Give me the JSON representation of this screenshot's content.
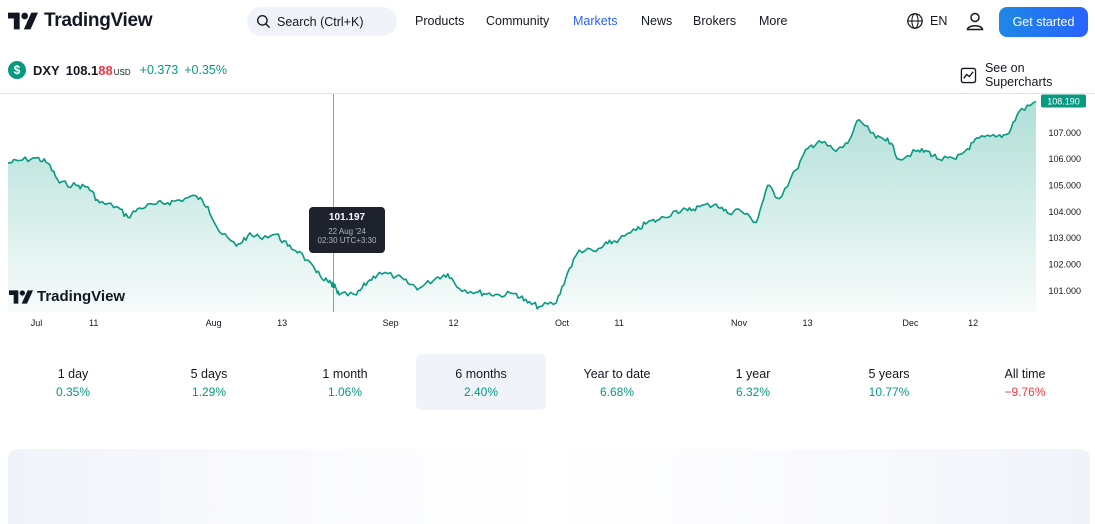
{
  "header": {
    "logo_text": "TradingView",
    "search_placeholder": "Search (Ctrl+K)",
    "nav": [
      "Products",
      "Community",
      "Markets",
      "News",
      "Brokers",
      "More"
    ],
    "active_nav": "Markets",
    "language": "EN",
    "cta": "Get started"
  },
  "ticker": {
    "symbol": "DXY",
    "price_main": "108.1",
    "price_tail": "88",
    "currency": "USD",
    "change": "+0.373",
    "change_percent": "+0.35%",
    "supercharts_label": "See on Supercharts"
  },
  "tooltip": {
    "value": "101.197",
    "date": "22 Aug '24",
    "time": "02:30 UTC+3:30"
  },
  "watermark": "TradingView",
  "colors": {
    "line": "#089981",
    "up": "#089981",
    "down": "#f23645",
    "accent": "#2962ff"
  },
  "chart_data": {
    "type": "area",
    "y_axis_ticks": [
      "107.000",
      "106.000",
      "105.000",
      "104.000",
      "103.000",
      "102.000",
      "101.000"
    ],
    "x_axis_ticks": [
      "Jul",
      "11",
      "Aug",
      "13",
      "Sep",
      "12",
      "Oct",
      "11",
      "Nov",
      "13",
      "Dec",
      "12"
    ],
    "last_value_label": "108.190",
    "ylim": [
      100.2,
      108.4
    ],
    "series": [
      {
        "x": [
          "2024-06-26",
          "2024-06-28",
          "2024-07-01",
          "2024-07-03",
          "2024-07-05",
          "2024-07-08",
          "2024-07-10",
          "2024-07-12",
          "2024-07-15",
          "2024-07-17",
          "2024-07-19",
          "2024-07-22",
          "2024-07-24",
          "2024-07-26",
          "2024-07-29",
          "2024-07-31",
          "2024-08-02",
          "2024-08-05",
          "2024-08-07",
          "2024-08-09",
          "2024-08-12",
          "2024-08-14",
          "2024-08-16",
          "2024-08-19",
          "2024-08-21",
          "2024-08-22",
          "2024-08-23",
          "2024-08-26",
          "2024-08-28",
          "2024-08-30",
          "2024-09-02",
          "2024-09-04",
          "2024-09-06",
          "2024-09-09",
          "2024-09-11",
          "2024-09-13",
          "2024-09-16",
          "2024-09-18",
          "2024-09-20",
          "2024-09-23",
          "2024-09-25",
          "2024-09-27",
          "2024-09-30",
          "2024-10-02",
          "2024-10-04",
          "2024-10-07",
          "2024-10-09",
          "2024-10-11",
          "2024-10-14",
          "2024-10-16",
          "2024-10-18",
          "2024-10-21",
          "2024-10-23",
          "2024-10-25",
          "2024-10-28",
          "2024-10-30",
          "2024-11-01",
          "2024-11-04",
          "2024-11-06",
          "2024-11-08",
          "2024-11-11",
          "2024-11-13",
          "2024-11-15",
          "2024-11-18",
          "2024-11-20",
          "2024-11-22",
          "2024-11-25",
          "2024-11-27",
          "2024-11-29",
          "2024-12-02",
          "2024-12-04",
          "2024-12-06",
          "2024-12-09",
          "2024-12-11",
          "2024-12-13",
          "2024-12-16",
          "2024-12-18",
          "2024-12-20",
          "2024-12-23"
        ],
        "values": [
          105.85,
          105.95,
          106.05,
          105.85,
          105.1,
          105.0,
          104.95,
          104.35,
          104.2,
          103.8,
          104.15,
          104.3,
          104.35,
          104.45,
          104.6,
          104.2,
          103.25,
          102.7,
          103.1,
          103.05,
          103.15,
          102.7,
          102.5,
          101.7,
          101.35,
          101.2,
          100.85,
          100.85,
          101.35,
          101.7,
          101.55,
          101.3,
          101.1,
          101.5,
          101.65,
          101.1,
          100.95,
          100.9,
          100.85,
          100.9,
          100.55,
          100.4,
          100.55,
          101.7,
          102.55,
          102.5,
          102.8,
          102.95,
          103.3,
          103.6,
          103.7,
          104.05,
          104.05,
          104.2,
          104.3,
          103.95,
          104.1,
          103.6,
          105.0,
          104.5,
          105.6,
          106.4,
          106.7,
          106.3,
          106.6,
          107.5,
          106.8,
          106.8,
          106.0,
          106.3,
          106.3,
          106.0,
          106.0,
          106.4,
          106.8,
          106.85,
          106.95,
          107.8,
          108.19
        ]
      }
    ]
  },
  "periods": [
    {
      "label": "1 day",
      "value": "0.35%",
      "negative": false
    },
    {
      "label": "5 days",
      "value": "1.29%",
      "negative": false
    },
    {
      "label": "1 month",
      "value": "1.06%",
      "negative": false
    },
    {
      "label": "6 months",
      "value": "2.40%",
      "negative": false
    },
    {
      "label": "Year to date",
      "value": "6.68%",
      "negative": false
    },
    {
      "label": "1 year",
      "value": "6.32%",
      "negative": false
    },
    {
      "label": "5 years",
      "value": "10.77%",
      "negative": false
    },
    {
      "label": "All time",
      "value": "−9.76%",
      "negative": true
    }
  ],
  "active_period": "6 months"
}
